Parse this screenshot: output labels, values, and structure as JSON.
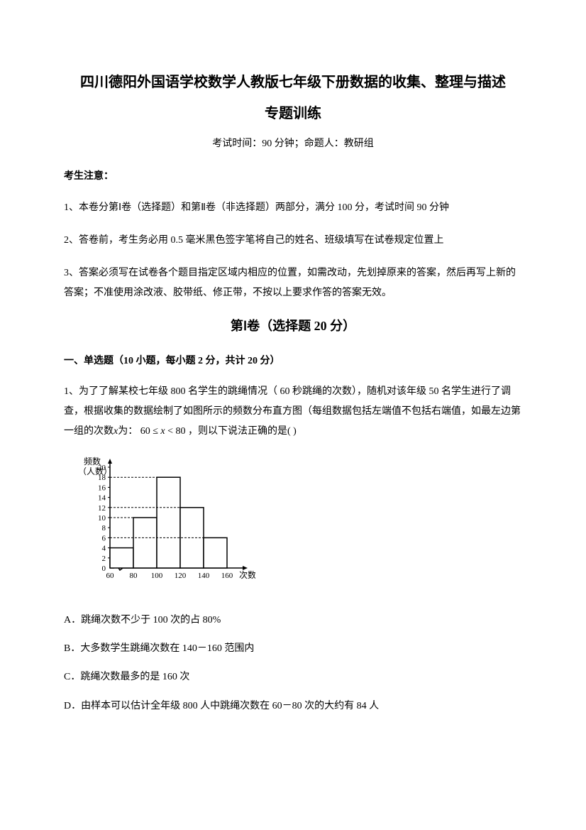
{
  "title_line1": "四川德阳外国语学校数学人教版七年级下册数据的收集、整理与描述",
  "title_line2": "专题训练",
  "exam_info": "考试时间：90 分钟；命题人：教研组",
  "notice_header": "考生注意：",
  "notices": [
    "1、本卷分第Ⅰ卷（选择题）和第Ⅱ卷（非选择题）两部分，满分 100 分，考试时间 90 分钟",
    "2、答卷前，考生务必用 0.5 毫米黑色签字笔将自己的姓名、班级填写在试卷规定位置上",
    "3、答案必须写在试卷各个题目指定区域内相应的位置，如需改动，先划掉原来的答案，然后再写上新的答案；不准使用涂改液、胶带纸、修正带，不按以上要求作答的答案无效。"
  ],
  "section_header": "第Ⅰ卷（选择题  20 分）",
  "question_type": "一、单选题（10 小题，每小题 2 分，共计 20 分）",
  "question1": {
    "prefix": "1、为了了解某校七年级 800 名学生的跳绳情况（ 60 秒跳绳的次数），随机对该年级 50 名学生进行了调查，根据收集的数据绘制了如图所示的频数分布直方图（每组数据包括左端值不包括右端值，如最左边第一组的次数",
    "var": "x",
    "middle": "为： 60 ≤ ",
    "var2": "x",
    "suffix": " < 80 ，则以下说法正确的是(                    )"
  },
  "chart": {
    "y_label": "频数\n（人数）",
    "x_label": "次数",
    "y_ticks": [
      2,
      4,
      6,
      8,
      10,
      12,
      14,
      16,
      18,
      20
    ],
    "x_ticks": [
      60,
      80,
      100,
      120,
      140,
      160
    ],
    "bars": [
      {
        "x_start": 60,
        "x_end": 80,
        "height": 4
      },
      {
        "x_start": 80,
        "x_end": 100,
        "height": 10
      },
      {
        "x_start": 100,
        "x_end": 120,
        "height": 18
      },
      {
        "x_start": 120,
        "x_end": 140,
        "height": 12
      },
      {
        "x_start": 140,
        "x_end": 160,
        "height": 6
      }
    ],
    "bar_fill": "#ffffff",
    "bar_stroke": "#000000",
    "axis_color": "#000000"
  },
  "options": {
    "A": "A．跳绳次数不少于 100 次的占 80%",
    "B": "B．大多数学生跳绳次数在 140－160 范围内",
    "C": "C．跳绳次数最多的是 160 次",
    "D": "D．由样本可以估计全年级 800 人中跳绳次数在 60－80 次的大约有 84 人"
  }
}
